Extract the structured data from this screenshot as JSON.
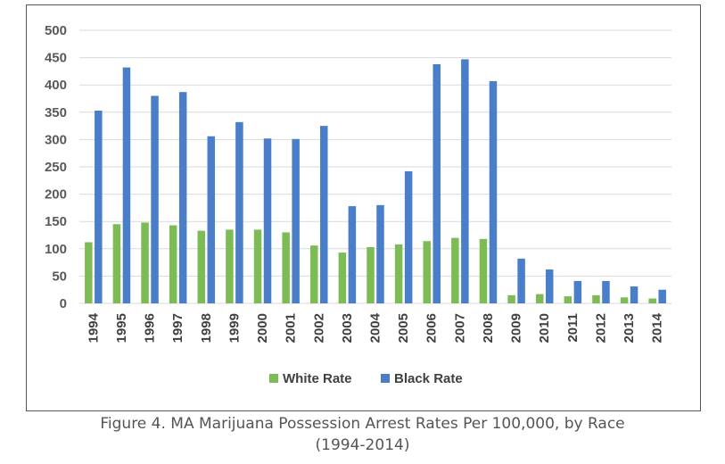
{
  "chart_data": {
    "type": "bar",
    "title": "",
    "xlabel": "",
    "ylabel": "",
    "ylim": [
      0,
      500
    ],
    "yticks": [
      0,
      50,
      100,
      150,
      200,
      250,
      300,
      350,
      400,
      450,
      500
    ],
    "grid": true,
    "legend_position": "bottom",
    "categories": [
      "1994",
      "1995",
      "1996",
      "1997",
      "1998",
      "1999",
      "2000",
      "2001",
      "2002",
      "2003",
      "2004",
      "2005",
      "2006",
      "2007",
      "2008",
      "2009",
      "2010",
      "2011",
      "2012",
      "2013",
      "2014"
    ],
    "series": [
      {
        "name": "White Rate",
        "color": "#7dbb55",
        "values": [
          112,
          145,
          148,
          143,
          133,
          135,
          135,
          130,
          106,
          93,
          103,
          108,
          114,
          120,
          118,
          15,
          17,
          13,
          15,
          11,
          9
        ]
      },
      {
        "name": "Black Rate",
        "color": "#4a7ec8",
        "values": [
          353,
          432,
          380,
          387,
          306,
          332,
          302,
          301,
          325,
          178,
          180,
          242,
          438,
          447,
          407,
          82,
          62,
          41,
          41,
          31,
          25
        ]
      }
    ]
  },
  "caption": {
    "line1": "Figure 4. MA Marijuana Possession Arrest Rates Per 100,000, by Race",
    "line2": "(1994-2014)"
  }
}
